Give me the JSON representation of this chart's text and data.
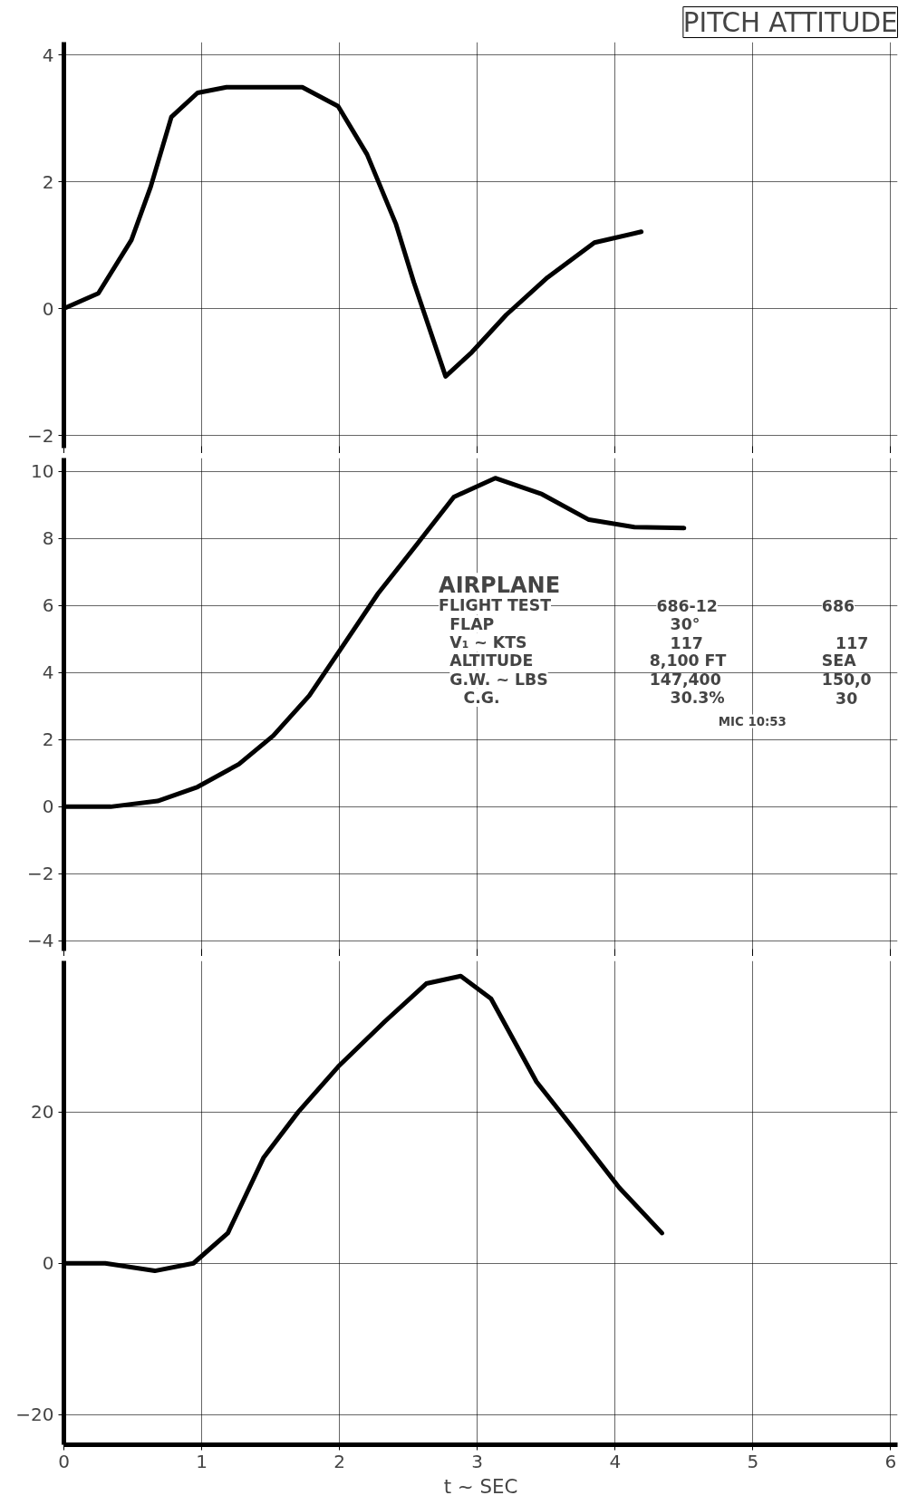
{
  "chart_data": [
    {
      "type": "line",
      "title": "PITCH ATTITUDE",
      "x": [
        0,
        0.25,
        0.49,
        0.63,
        0.78,
        0.97,
        1.18,
        1.73,
        1.99,
        2.2,
        2.41,
        2.54,
        2.77,
        2.96,
        3.21,
        3.51,
        3.85,
        4.19
      ],
      "values": [
        0,
        0.24,
        1.08,
        1.92,
        3.02,
        3.4,
        3.49,
        3.49,
        3.19,
        2.43,
        1.33,
        0.41,
        -1.07,
        -0.69,
        -0.1,
        0.49,
        1.04,
        1.21
      ],
      "color": "#000000",
      "xlim": [
        0,
        6.05
      ],
      "xticks": [
        0,
        1,
        2,
        3,
        4,
        5,
        6
      ],
      "ylim": [
        -2.2,
        4.2
      ],
      "yticks": [
        4,
        2,
        0,
        -2
      ],
      "grid": true,
      "tick_labels": "y"
    },
    {
      "type": "line",
      "x": [
        0,
        0.34,
        0.68,
        0.97,
        1.27,
        1.52,
        1.78,
        2.03,
        2.28,
        2.54,
        2.83,
        3.13,
        3.47,
        3.81,
        4.14,
        4.5
      ],
      "values": [
        0,
        0,
        0.17,
        0.59,
        1.27,
        2.12,
        3.31,
        4.83,
        6.36,
        7.71,
        9.24,
        9.8,
        9.32,
        8.56,
        8.34,
        8.31
      ],
      "color": "#000000",
      "xlim": [
        0,
        6.05
      ],
      "xticks": [
        0,
        1,
        2,
        3,
        4,
        5,
        6
      ],
      "ylim": [
        -4.3,
        10.4
      ],
      "yticks": [
        10,
        8,
        6,
        4,
        2,
        0,
        -2,
        -4
      ],
      "grid": true,
      "tick_labels": "y",
      "annotations": [
        "AIRPLANE",
        "FLIGHT TEST",
        "686-12",
        "686",
        "FLAP",
        "30°",
        "V₁ ~ KTS",
        "117",
        "117",
        "ALTITUDE",
        "8,100 FT",
        "SEA",
        "G.W. ~ LBS",
        "147,400",
        "150,0",
        "C.G.",
        "30.3%",
        "30",
        "MIC 10:53"
      ]
    },
    {
      "type": "line",
      "xlabel": "t ~ SEC",
      "x": [
        0,
        0.3,
        0.66,
        0.94,
        1.19,
        1.45,
        1.7,
        1.99,
        2.33,
        2.63,
        2.88,
        3.1,
        3.43,
        3.69,
        4.03,
        4.34
      ],
      "values": [
        0,
        0,
        -1,
        0,
        4,
        14,
        20,
        26,
        32,
        37,
        38,
        35,
        24,
        18,
        10,
        4
      ],
      "color": "#000000",
      "xlim": [
        0,
        6.05
      ],
      "xticks": [
        0,
        1,
        2,
        3,
        4,
        5,
        6
      ],
      "ylim": [
        -24,
        40
      ],
      "yticks": [
        20,
        0,
        -20
      ],
      "grid": true
    }
  ]
}
